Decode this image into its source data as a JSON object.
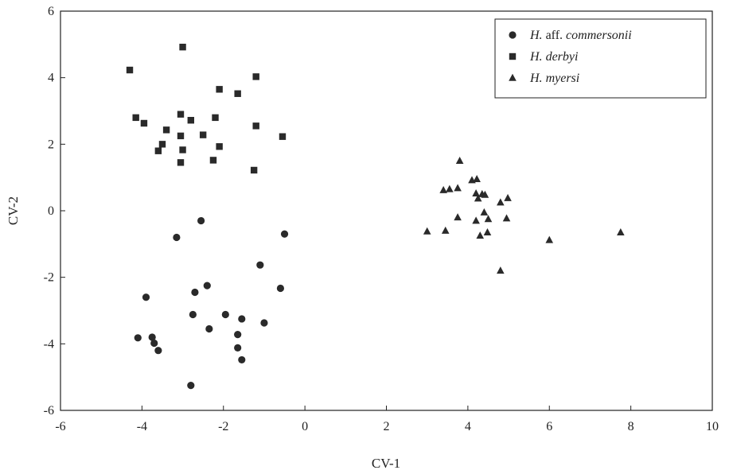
{
  "chart_data": {
    "type": "scatter",
    "title": "",
    "xlabel": "CV-1",
    "ylabel": "CV-2",
    "xlim": [
      -6,
      10
    ],
    "ylim": [
      -6,
      6
    ],
    "x_ticks": [
      "-6",
      "-4",
      "-2",
      "0",
      "2",
      "4",
      "6",
      "8",
      "10"
    ],
    "y_ticks": [
      "-6",
      "-4",
      "-2",
      "0",
      "2",
      "4",
      "6"
    ],
    "grid": false,
    "legend_position": "top-right",
    "series": [
      {
        "name_prefix": "H.",
        "name_upright": "aff.",
        "name_species": "commersonii",
        "marker": "circle",
        "color": "#2a2a2a",
        "points": [
          [
            -2.55,
            -0.3
          ],
          [
            -3.15,
            -0.8
          ],
          [
            -0.5,
            -0.7
          ],
          [
            -1.1,
            -1.63
          ],
          [
            -3.9,
            -2.6
          ],
          [
            -2.4,
            -2.25
          ],
          [
            -2.7,
            -2.45
          ],
          [
            -0.6,
            -2.33
          ],
          [
            -2.75,
            -3.12
          ],
          [
            -1.95,
            -3.12
          ],
          [
            -1.55,
            -3.25
          ],
          [
            -1.0,
            -3.37
          ],
          [
            -2.35,
            -3.55
          ],
          [
            -4.1,
            -3.82
          ],
          [
            -3.75,
            -3.8
          ],
          [
            -3.7,
            -3.98
          ],
          [
            -1.65,
            -3.72
          ],
          [
            -3.6,
            -4.2
          ],
          [
            -1.65,
            -4.12
          ],
          [
            -1.55,
            -4.48
          ],
          [
            -2.8,
            -5.25
          ]
        ]
      },
      {
        "name_prefix": "H.",
        "name_upright": "",
        "name_species": "derbyi",
        "marker": "square",
        "color": "#2a2a2a",
        "points": [
          [
            -3.0,
            4.92
          ],
          [
            -4.3,
            4.23
          ],
          [
            -1.2,
            4.03
          ],
          [
            -2.1,
            3.65
          ],
          [
            -1.65,
            3.52
          ],
          [
            -4.15,
            2.8
          ],
          [
            -3.05,
            2.9
          ],
          [
            -2.2,
            2.8
          ],
          [
            -3.95,
            2.63
          ],
          [
            -2.8,
            2.72
          ],
          [
            -1.2,
            2.55
          ],
          [
            -3.4,
            2.43
          ],
          [
            -2.5,
            2.28
          ],
          [
            -3.05,
            2.25
          ],
          [
            -0.55,
            2.23
          ],
          [
            -3.5,
            2.0
          ],
          [
            -2.1,
            1.93
          ],
          [
            -3.6,
            1.8
          ],
          [
            -3.0,
            1.83
          ],
          [
            -2.25,
            1.52
          ],
          [
            -3.05,
            1.45
          ],
          [
            -1.25,
            1.22
          ]
        ]
      },
      {
        "name_prefix": "H.",
        "name_upright": "",
        "name_species": "myersi",
        "marker": "triangle",
        "color": "#2a2a2a",
        "points": [
          [
            3.8,
            1.5
          ],
          [
            4.1,
            0.92
          ],
          [
            4.22,
            0.95
          ],
          [
            3.4,
            0.62
          ],
          [
            3.55,
            0.65
          ],
          [
            3.75,
            0.68
          ],
          [
            4.2,
            0.52
          ],
          [
            4.35,
            0.5
          ],
          [
            4.42,
            0.48
          ],
          [
            4.25,
            0.37
          ],
          [
            4.98,
            0.38
          ],
          [
            4.8,
            0.25
          ],
          [
            4.4,
            -0.05
          ],
          [
            3.75,
            -0.2
          ],
          [
            4.2,
            -0.3
          ],
          [
            4.5,
            -0.25
          ],
          [
            4.95,
            -0.23
          ],
          [
            3.0,
            -0.62
          ],
          [
            3.45,
            -0.6
          ],
          [
            4.48,
            -0.65
          ],
          [
            4.3,
            -0.75
          ],
          [
            6.0,
            -0.88
          ],
          [
            7.75,
            -0.65
          ],
          [
            4.8,
            -1.8
          ]
        ]
      }
    ]
  }
}
